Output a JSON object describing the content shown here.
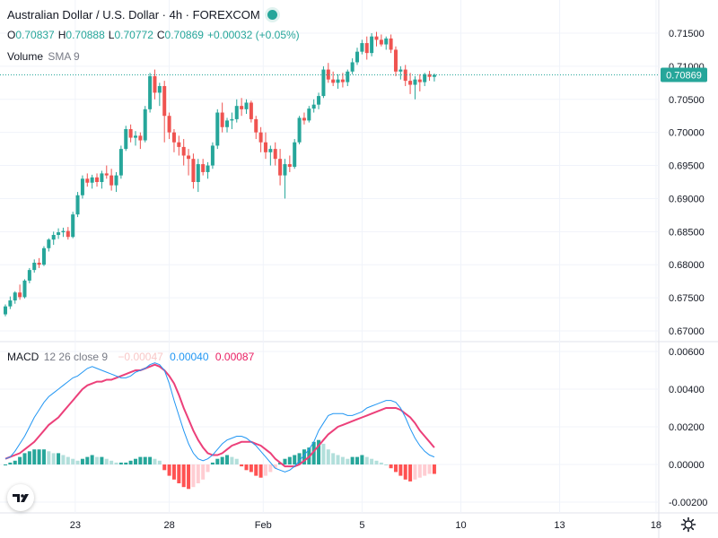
{
  "header": {
    "title": "Australian Dollar / U.S. Dollar · 4h · FOREXCOM",
    "open_label": "O",
    "open_value": "0.70837",
    "high_label": "H",
    "high_value": "0.70888",
    "low_label": "L",
    "low_value": "0.70772",
    "close_label": "C",
    "close_value": "0.70869",
    "change": "+0.00032 (+0.05%)"
  },
  "volume_label": {
    "name": "Volume",
    "params": "SMA 9"
  },
  "macd_label": {
    "name": "MACD",
    "params": "12 26 close 9",
    "hist": "−0.00047",
    "macd": "0.00040",
    "signal": "0.00087"
  },
  "colors": {
    "up": "#26a69a",
    "down": "#ef5350",
    "macd": "#2196f3",
    "signal": "#ec407a",
    "hist_up_strong": "#26a69a",
    "hist_up_weak": "#b2dfdb",
    "hist_dn_strong": "#ff5252",
    "hist_dn_weak": "#ffcdd2"
  },
  "icons": {
    "logo": "tradingview-logo-icon",
    "settings": "gear-icon"
  },
  "chart_data": [
    {
      "type": "candlestick",
      "title": "Australian Dollar / U.S. Dollar · 4h · FOREXCOM",
      "y_ticks": [
        "0.71500",
        "0.71000",
        "0.70500",
        "0.70000",
        "0.69500",
        "0.69000",
        "0.68500",
        "0.68000",
        "0.67500",
        "0.67000"
      ],
      "ylim": [
        0.669,
        0.7175
      ],
      "current_price": "0.70869",
      "x_ticks": [
        "23",
        "28",
        "Feb",
        "5",
        "10",
        "13",
        "18"
      ],
      "candles": [
        [
          0.6725,
          0.674,
          0.6722,
          0.6737
        ],
        [
          0.6737,
          0.6752,
          0.6733,
          0.6746
        ],
        [
          0.6746,
          0.676,
          0.6741,
          0.6758
        ],
        [
          0.6758,
          0.677,
          0.6747,
          0.6751
        ],
        [
          0.6751,
          0.6778,
          0.6749,
          0.6776
        ],
        [
          0.6776,
          0.6795,
          0.6772,
          0.6792
        ],
        [
          0.6792,
          0.6808,
          0.6788,
          0.6803
        ],
        [
          0.6803,
          0.681,
          0.6795,
          0.68
        ],
        [
          0.68,
          0.6828,
          0.6798,
          0.6825
        ],
        [
          0.6825,
          0.684,
          0.682,
          0.6838
        ],
        [
          0.6838,
          0.685,
          0.683,
          0.6845
        ],
        [
          0.6845,
          0.6855,
          0.6839,
          0.6849
        ],
        [
          0.6849,
          0.6856,
          0.6842,
          0.6851
        ],
        [
          0.6851,
          0.6857,
          0.6838,
          0.6842
        ],
        [
          0.6842,
          0.688,
          0.684,
          0.6876
        ],
        [
          0.6876,
          0.691,
          0.6872,
          0.6905
        ],
        [
          0.6905,
          0.6935,
          0.69,
          0.693
        ],
        [
          0.693,
          0.6938,
          0.6918,
          0.6924
        ],
        [
          0.6924,
          0.6936,
          0.6915,
          0.6932
        ],
        [
          0.6932,
          0.6938,
          0.6918,
          0.6925
        ],
        [
          0.6925,
          0.6942,
          0.6915,
          0.6938
        ],
        [
          0.6938,
          0.695,
          0.693,
          0.6935
        ],
        [
          0.6935,
          0.6945,
          0.6912,
          0.692
        ],
        [
          0.692,
          0.694,
          0.691,
          0.6935
        ],
        [
          0.6935,
          0.698,
          0.693,
          0.6975
        ],
        [
          0.6975,
          0.701,
          0.6972,
          0.7005
        ],
        [
          0.7005,
          0.7012,
          0.6985,
          0.6992
        ],
        [
          0.6992,
          0.7002,
          0.698,
          0.6995
        ],
        [
          0.6995,
          0.7,
          0.6975,
          0.6988
        ],
        [
          0.6988,
          0.704,
          0.6985,
          0.7035
        ],
        [
          0.7035,
          0.709,
          0.703,
          0.7085
        ],
        [
          0.7085,
          0.7095,
          0.705,
          0.706
        ],
        [
          0.706,
          0.7075,
          0.704,
          0.707
        ],
        [
          0.707,
          0.7078,
          0.6985,
          0.7025
        ],
        [
          0.7025,
          0.703,
          0.699,
          0.7
        ],
        [
          0.7,
          0.7005,
          0.697,
          0.6985
        ],
        [
          0.6985,
          0.6995,
          0.6965,
          0.6978
        ],
        [
          0.6978,
          0.699,
          0.695,
          0.6965
        ],
        [
          0.6965,
          0.6975,
          0.6935,
          0.696
        ],
        [
          0.696,
          0.6968,
          0.6915,
          0.6925
        ],
        [
          0.6925,
          0.696,
          0.691,
          0.6952
        ],
        [
          0.6952,
          0.696,
          0.6935,
          0.694
        ],
        [
          0.694,
          0.6955,
          0.693,
          0.695
        ],
        [
          0.695,
          0.6985,
          0.6945,
          0.698
        ],
        [
          0.698,
          0.7035,
          0.6975,
          0.703
        ],
        [
          0.703,
          0.7045,
          0.7,
          0.7008
        ],
        [
          0.7008,
          0.7022,
          0.7,
          0.7018
        ],
        [
          0.7018,
          0.703,
          0.7005,
          0.702
        ],
        [
          0.702,
          0.705,
          0.7015,
          0.704
        ],
        [
          0.704,
          0.7052,
          0.7025,
          0.7035
        ],
        [
          0.7035,
          0.705,
          0.7028,
          0.7045
        ],
        [
          0.7045,
          0.7048,
          0.7015,
          0.702
        ],
        [
          0.702,
          0.7025,
          0.699,
          0.7
        ],
        [
          0.7,
          0.7008,
          0.697,
          0.6985
        ],
        [
          0.6985,
          0.7,
          0.696,
          0.697
        ],
        [
          0.697,
          0.698,
          0.695,
          0.6975
        ],
        [
          0.6975,
          0.6985,
          0.695,
          0.696
        ],
        [
          0.696,
          0.6975,
          0.692,
          0.6935
        ],
        [
          0.6935,
          0.696,
          0.69,
          0.6952
        ],
        [
          0.6952,
          0.6965,
          0.694,
          0.6948
        ],
        [
          0.6948,
          0.699,
          0.6945,
          0.6985
        ],
        [
          0.6985,
          0.7025,
          0.6982,
          0.7022
        ],
        [
          0.7022,
          0.703,
          0.7012,
          0.7018
        ],
        [
          0.7018,
          0.704,
          0.7015,
          0.7036
        ],
        [
          0.7036,
          0.705,
          0.703,
          0.7042
        ],
        [
          0.7042,
          0.706,
          0.7035,
          0.7055
        ],
        [
          0.7055,
          0.71,
          0.7052,
          0.7095
        ],
        [
          0.7095,
          0.7105,
          0.7075,
          0.708
        ],
        [
          0.708,
          0.7092,
          0.707,
          0.7075
        ],
        [
          0.7075,
          0.7088,
          0.7066,
          0.708
        ],
        [
          0.708,
          0.709,
          0.7068,
          0.7076
        ],
        [
          0.7076,
          0.7095,
          0.707,
          0.7092
        ],
        [
          0.7092,
          0.7112,
          0.7088,
          0.7106
        ],
        [
          0.7106,
          0.7128,
          0.7102,
          0.7122
        ],
        [
          0.7122,
          0.714,
          0.7118,
          0.7135
        ],
        [
          0.7135,
          0.7145,
          0.711,
          0.712
        ],
        [
          0.712,
          0.715,
          0.7115,
          0.7145
        ],
        [
          0.7145,
          0.7152,
          0.713,
          0.714
        ],
        [
          0.714,
          0.7148,
          0.713,
          0.7133
        ],
        [
          0.7133,
          0.7145,
          0.7125,
          0.7142
        ],
        [
          0.7142,
          0.7148,
          0.712,
          0.7125
        ],
        [
          0.7125,
          0.713,
          0.7085,
          0.7092
        ],
        [
          0.7092,
          0.71,
          0.708,
          0.7095
        ],
        [
          0.7095,
          0.7102,
          0.707,
          0.7078
        ],
        [
          0.7078,
          0.709,
          0.7058,
          0.7072
        ],
        [
          0.7072,
          0.7085,
          0.705,
          0.708
        ],
        [
          0.708,
          0.7088,
          0.7062,
          0.7076
        ],
        [
          0.7076,
          0.709,
          0.707,
          0.7088
        ],
        [
          0.7088,
          0.7093,
          0.7078,
          0.7084
        ],
        [
          0.7084,
          0.7089,
          0.7077,
          0.7087
        ]
      ]
    },
    {
      "type": "macd",
      "y_ticks": [
        "0.00600",
        "0.00400",
        "0.00200",
        "0.00000",
        "-0.00200"
      ],
      "ylim": [
        -0.0023,
        0.0065
      ],
      "macd": [
        0.0003,
        0.0004,
        0.0007,
        0.0011,
        0.0015,
        0.002,
        0.0025,
        0.0029,
        0.0033,
        0.0036,
        0.0038,
        0.004,
        0.0042,
        0.0044,
        0.0046,
        0.0047,
        0.0049,
        0.0051,
        0.0052,
        0.0051,
        0.005,
        0.0049,
        0.0048,
        0.0047,
        0.0046,
        0.0046,
        0.0047,
        0.0049,
        0.005,
        0.0051,
        0.0053,
        0.0054,
        0.0053,
        0.005,
        0.0043,
        0.0034,
        0.0026,
        0.0018,
        0.0011,
        0.0006,
        0.0003,
        0.0002,
        0.0003,
        0.0005,
        0.0008,
        0.0011,
        0.0013,
        0.0014,
        0.0015,
        0.0015,
        0.0014,
        0.0012,
        0.001,
        0.0007,
        0.0004,
        0.0001,
        -0.0002,
        -0.0003,
        -0.0004,
        -0.0003,
        -0.0001,
        0.0002,
        0.0005,
        0.0008,
        0.0012,
        0.0018,
        0.0022,
        0.0026,
        0.0027,
        0.0027,
        0.0027,
        0.0026,
        0.0026,
        0.0027,
        0.0028,
        0.003,
        0.0031,
        0.0032,
        0.0033,
        0.0034,
        0.0034,
        0.0033,
        0.003,
        0.0025,
        0.0019,
        0.0014,
        0.001,
        0.0007,
        0.0005,
        0.0004
      ],
      "signal": [
        0.0003,
        0.0004,
        0.0005,
        0.0006,
        0.0008,
        0.001,
        0.0012,
        0.0015,
        0.0018,
        0.0021,
        0.0023,
        0.0025,
        0.0028,
        0.0031,
        0.0034,
        0.0037,
        0.004,
        0.0042,
        0.0043,
        0.0044,
        0.0044,
        0.0045,
        0.0045,
        0.0046,
        0.0047,
        0.0048,
        0.0049,
        0.005,
        0.005,
        0.0051,
        0.0052,
        0.0053,
        0.0052,
        0.005,
        0.0047,
        0.0043,
        0.0037,
        0.003,
        0.0024,
        0.0018,
        0.0013,
        0.0009,
        0.0006,
        0.0005,
        0.0005,
        0.0006,
        0.0008,
        0.001,
        0.0011,
        0.0012,
        0.0012,
        0.0012,
        0.0011,
        0.001,
        0.0008,
        0.0006,
        0.0003,
        0.0001,
        -0.0001,
        -0.0001,
        -0.0001,
        0.0,
        0.0002,
        0.0004,
        0.0007,
        0.001,
        0.0013,
        0.0016,
        0.0018,
        0.002,
        0.0021,
        0.0022,
        0.0023,
        0.0024,
        0.0025,
        0.0026,
        0.0027,
        0.0028,
        0.0029,
        0.003,
        0.003,
        0.003,
        0.0029,
        0.0027,
        0.0025,
        0.0022,
        0.0018,
        0.0015,
        0.0012,
        0.0009
      ],
      "histogram": [
        0.0,
        0.0001,
        0.0002,
        0.0004,
        0.0006,
        0.0007,
        0.0008,
        0.0008,
        0.0008,
        0.0007,
        0.0006,
        0.0006,
        0.0005,
        0.0004,
        0.0003,
        0.0002,
        0.0003,
        0.0004,
        0.0005,
        0.0004,
        0.0004,
        0.0003,
        0.0002,
        0.0001,
        0.0001,
        0.0001,
        0.0002,
        0.0003,
        0.0004,
        0.0004,
        0.0004,
        0.0003,
        0.0002,
        -0.0003,
        -0.0006,
        -0.0008,
        -0.001,
        -0.0012,
        -0.0013,
        -0.0012,
        -0.001,
        -0.0008,
        -0.0004,
        0.0001,
        0.0003,
        0.0004,
        0.0005,
        0.0004,
        0.0003,
        -0.0001,
        -0.0003,
        -0.0004,
        -0.0006,
        -0.0007,
        -0.0006,
        -0.0004,
        -0.0002,
        0.0001,
        0.0003,
        0.0004,
        0.0005,
        0.0006,
        0.0008,
        0.0009,
        0.0012,
        0.0013,
        0.0011,
        0.0008,
        0.0006,
        0.0005,
        0.0004,
        0.0003,
        0.0004,
        0.0004,
        0.0005,
        0.0004,
        0.0003,
        0.0002,
        0.0001,
        0.0,
        -0.0002,
        -0.0004,
        -0.0006,
        -0.0008,
        -0.0009,
        -0.0008,
        -0.0007,
        -0.0006,
        -0.0005,
        -0.0005
      ]
    }
  ]
}
